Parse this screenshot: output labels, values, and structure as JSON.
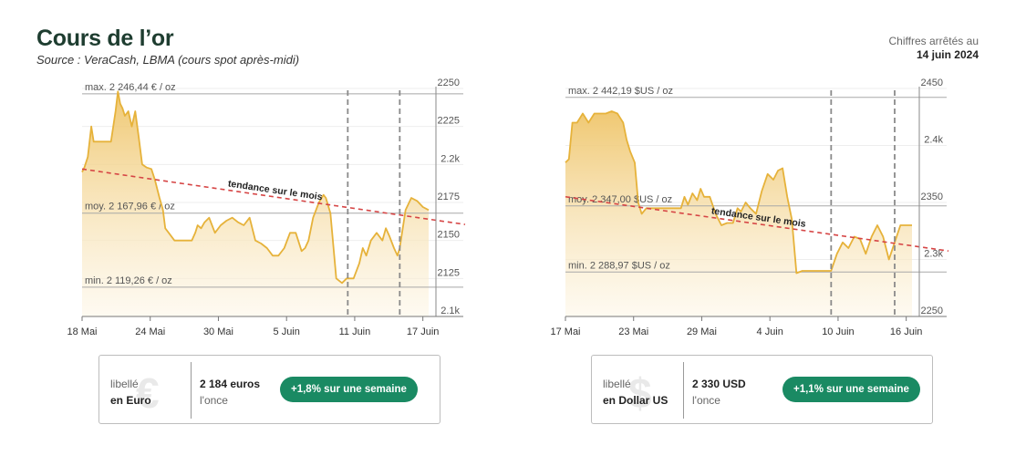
{
  "header": {
    "title": "Cours de l’or",
    "source": "Source : VeraCash, LBMA (cours spot après-midi)",
    "asof_label": "Chiffres arrêtés au",
    "asof_date": "14 juin 2024"
  },
  "colors": {
    "line": "#e6b23a",
    "fill_top": "#efc56a",
    "trend": "#d64545",
    "badge": "#1a8a63",
    "title": "#1e3d30"
  },
  "chart_data": [
    {
      "id": "eur",
      "type": "area",
      "x_ticks": [
        "18 Mai",
        "24 Mai",
        "30 Mai",
        "5 Juin",
        "11 Juin",
        "17 Juin"
      ],
      "x_range": [
        0,
        30
      ],
      "ylim": [
        2100,
        2250
      ],
      "y_ticks": [
        {
          "value": 2250,
          "label": "2250"
        },
        {
          "value": 2225,
          "label": "2225"
        },
        {
          "value": 2200,
          "label": "2.2k"
        },
        {
          "value": 2175,
          "label": "2175"
        },
        {
          "value": 2150,
          "label": "2150"
        },
        {
          "value": 2125,
          "label": "2125"
        },
        {
          "value": 2100,
          "label": "2.1k"
        }
      ],
      "ref_lines": [
        {
          "value": 2246.44,
          "label": "max. 2 246,44 € / oz"
        },
        {
          "value": 2167.96,
          "label": "moy. 2 167,96 € / oz"
        },
        {
          "value": 2119.26,
          "label": "min. 2 119,26 € / oz"
        }
      ],
      "vlines": [
        23,
        27.5
      ],
      "trend": {
        "label": "tendance sur le mois",
        "from": [
          0,
          2197
        ],
        "to": [
          30,
          2164
        ]
      },
      "series": [
        {
          "x": [
            0,
            0.2,
            0.5,
            0.8,
            1,
            2,
            2.5,
            2.9,
            3.1,
            3.3,
            3.5,
            3.7,
            4,
            4.3,
            4.6,
            4.9,
            5.2,
            5.6,
            6,
            6.3,
            6.7,
            7,
            7.2,
            7.5,
            8,
            9,
            9.5,
            9.8,
            10,
            10.3,
            10.6,
            11,
            11.5,
            12,
            12.5,
            13,
            13.5,
            14,
            14.5,
            15,
            15.5,
            16,
            16.5,
            17,
            17.5,
            18,
            18.5,
            19,
            19.3,
            19.6,
            20,
            20.5,
            20.9,
            21.1,
            21.5,
            22,
            22.5,
            22.9,
            23,
            23.5,
            24,
            24.3,
            24.6,
            25,
            25.5,
            26,
            26.3,
            26.6,
            27,
            27.3,
            27.5,
            28,
            28.5,
            29,
            29.5,
            30
          ],
          "y": [
            2195,
            2198,
            2205,
            2225,
            2215,
            2215,
            2215,
            2235,
            2248,
            2240,
            2237,
            2232,
            2235,
            2225,
            2235,
            2218,
            2200,
            2198,
            2197,
            2190,
            2178,
            2170,
            2158,
            2155,
            2150,
            2150,
            2150,
            2155,
            2160,
            2158,
            2162,
            2165,
            2155,
            2160,
            2163,
            2165,
            2162,
            2160,
            2165,
            2150,
            2148,
            2145,
            2140,
            2140,
            2145,
            2155,
            2155,
            2143,
            2145,
            2150,
            2165,
            2175,
            2180,
            2178,
            2168,
            2125,
            2122,
            2125,
            2125,
            2125,
            2135,
            2145,
            2140,
            2150,
            2155,
            2150,
            2158,
            2153,
            2145,
            2140,
            2145,
            2170,
            2178,
            2176,
            2172,
            2170
          ]
        }
      ]
    },
    {
      "id": "usd",
      "type": "area",
      "x_ticks": [
        "17 Mai",
        "23 Mai",
        "29 Mai",
        "4 Juin",
        "10 Juin",
        "16 Juin"
      ],
      "x_range": [
        0,
        30
      ],
      "ylim": [
        2250,
        2450
      ],
      "y_ticks": [
        {
          "value": 2450,
          "label": "2450"
        },
        {
          "value": 2400,
          "label": "2.4k"
        },
        {
          "value": 2350,
          "label": "2350"
        },
        {
          "value": 2300,
          "label": "2.3k"
        },
        {
          "value": 2250,
          "label": "2250"
        }
      ],
      "ref_lines": [
        {
          "value": 2442.19,
          "label": "max. 2 442,19 $US / oz"
        },
        {
          "value": 2347.0,
          "label": "moy. 2 347,00 $US / oz"
        },
        {
          "value": 2288.97,
          "label": "min. 2 288,97 $US / oz"
        }
      ],
      "vlines": [
        23,
        28.5
      ],
      "trend": {
        "label": "tendance sur le mois",
        "from": [
          0,
          2355
        ],
        "to": [
          30,
          2312
        ]
      },
      "series": [
        {
          "x": [
            0,
            0.3,
            0.6,
            1,
            1.5,
            2,
            2.5,
            3,
            3.5,
            4,
            4.5,
            5,
            5.3,
            5.6,
            6,
            6.3,
            6.6,
            7,
            8,
            9,
            10,
            10.3,
            10.6,
            11,
            11.4,
            11.7,
            12,
            12.5,
            13,
            13.5,
            14,
            14.5,
            14.9,
            15.2,
            15.6,
            16,
            16.5,
            17,
            17.5,
            18,
            18.4,
            18.8,
            19.2,
            19.6,
            20,
            20.5,
            21,
            21.5,
            22,
            22.5,
            23,
            23.5,
            24,
            24.5,
            25,
            25.5,
            26,
            26.5,
            27,
            27.5,
            28,
            28.5,
            29,
            29.5,
            30
          ],
          "y": [
            2385,
            2388,
            2420,
            2420,
            2428,
            2420,
            2428,
            2428,
            2428,
            2430,
            2428,
            2420,
            2405,
            2395,
            2385,
            2350,
            2340,
            2345,
            2345,
            2345,
            2345,
            2355,
            2348,
            2358,
            2352,
            2362,
            2355,
            2355,
            2340,
            2330,
            2332,
            2332,
            2345,
            2342,
            2350,
            2345,
            2340,
            2360,
            2375,
            2370,
            2378,
            2380,
            2355,
            2335,
            2288,
            2290,
            2290,
            2290,
            2290,
            2290,
            2290,
            2305,
            2315,
            2310,
            2320,
            2318,
            2305,
            2320,
            2330,
            2320,
            2300,
            2315,
            2330,
            2330,
            2330
          ]
        }
      ]
    }
  ],
  "cards": [
    {
      "label": "libellé",
      "unit": "en Euro",
      "glyph": "€",
      "price": "2 184 euros",
      "per": "l'once",
      "change": "+1,8% sur une semaine"
    },
    {
      "label": "libellé",
      "unit": "en Dollar US",
      "glyph": "$",
      "price": "2 330  USD",
      "per": "l'once",
      "change": "+1,1% sur une semaine"
    }
  ]
}
